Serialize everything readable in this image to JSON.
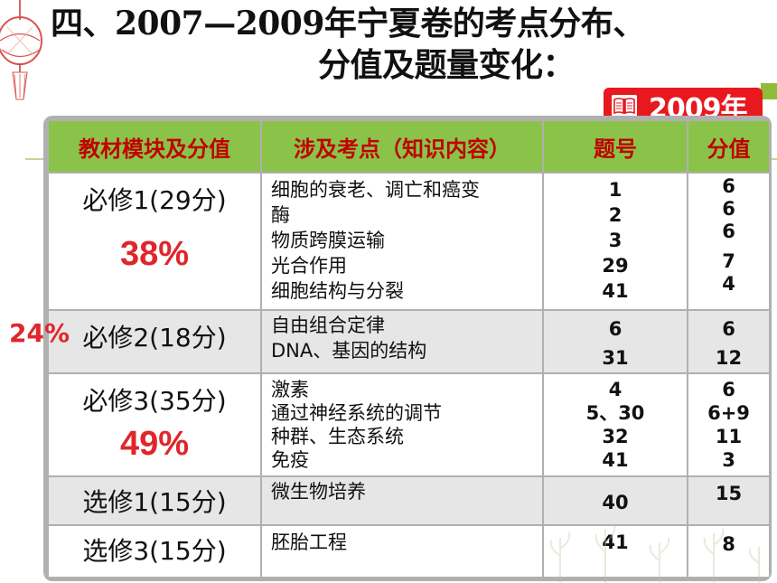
{
  "title": {
    "line1": "四、2007—2009年宁夏卷的考点分布、",
    "line2": "分值及题量变化："
  },
  "badge": {
    "year": "2009年",
    "icon": "book-icon",
    "color": "#e8181f"
  },
  "headers": [
    "教材模块及分值",
    "涉及考点（知识内容）",
    "题号",
    "分值"
  ],
  "rows": [
    {
      "module": "必修1(29分)",
      "percent": "38%",
      "topics": [
        "细胞的衰老、调亡和癌变",
        "酶",
        "物质跨膜运输",
        "光合作用",
        "细胞结构与分裂"
      ],
      "numbers": [
        "1",
        "2",
        "3",
        "29",
        "41"
      ],
      "scores": [
        "6",
        "6",
        "6",
        "7",
        "4"
      ]
    },
    {
      "module": "必修2(18分)",
      "side_percent": "24%",
      "topics": [
        "自由组合定律",
        "DNA、基因的结构"
      ],
      "numbers": [
        "6",
        "31"
      ],
      "scores": [
        "6",
        "12"
      ]
    },
    {
      "module": "必修3(35分)",
      "percent": "49%",
      "topics": [
        "激素",
        "通过神经系统的调节",
        "种群、生态系统",
        "免疫"
      ],
      "numbers": [
        "4",
        "5、30",
        "32",
        "41"
      ],
      "scores": [
        "6",
        "6+9",
        "11",
        "3"
      ]
    },
    {
      "module": "选修1(15分)",
      "topics": [
        "微生物培养"
      ],
      "numbers": [
        "40"
      ],
      "scores": [
        "15"
      ]
    },
    {
      "module": "选修3(15分)",
      "topics": [
        "胚胎工程"
      ],
      "numbers": [
        "41"
      ],
      "scores": [
        "8"
      ]
    }
  ],
  "colors": {
    "header_bg": "#8bc34a",
    "header_text": "#c00000",
    "accent_red": "#e0262b",
    "stripe": "#e6e6e6"
  }
}
